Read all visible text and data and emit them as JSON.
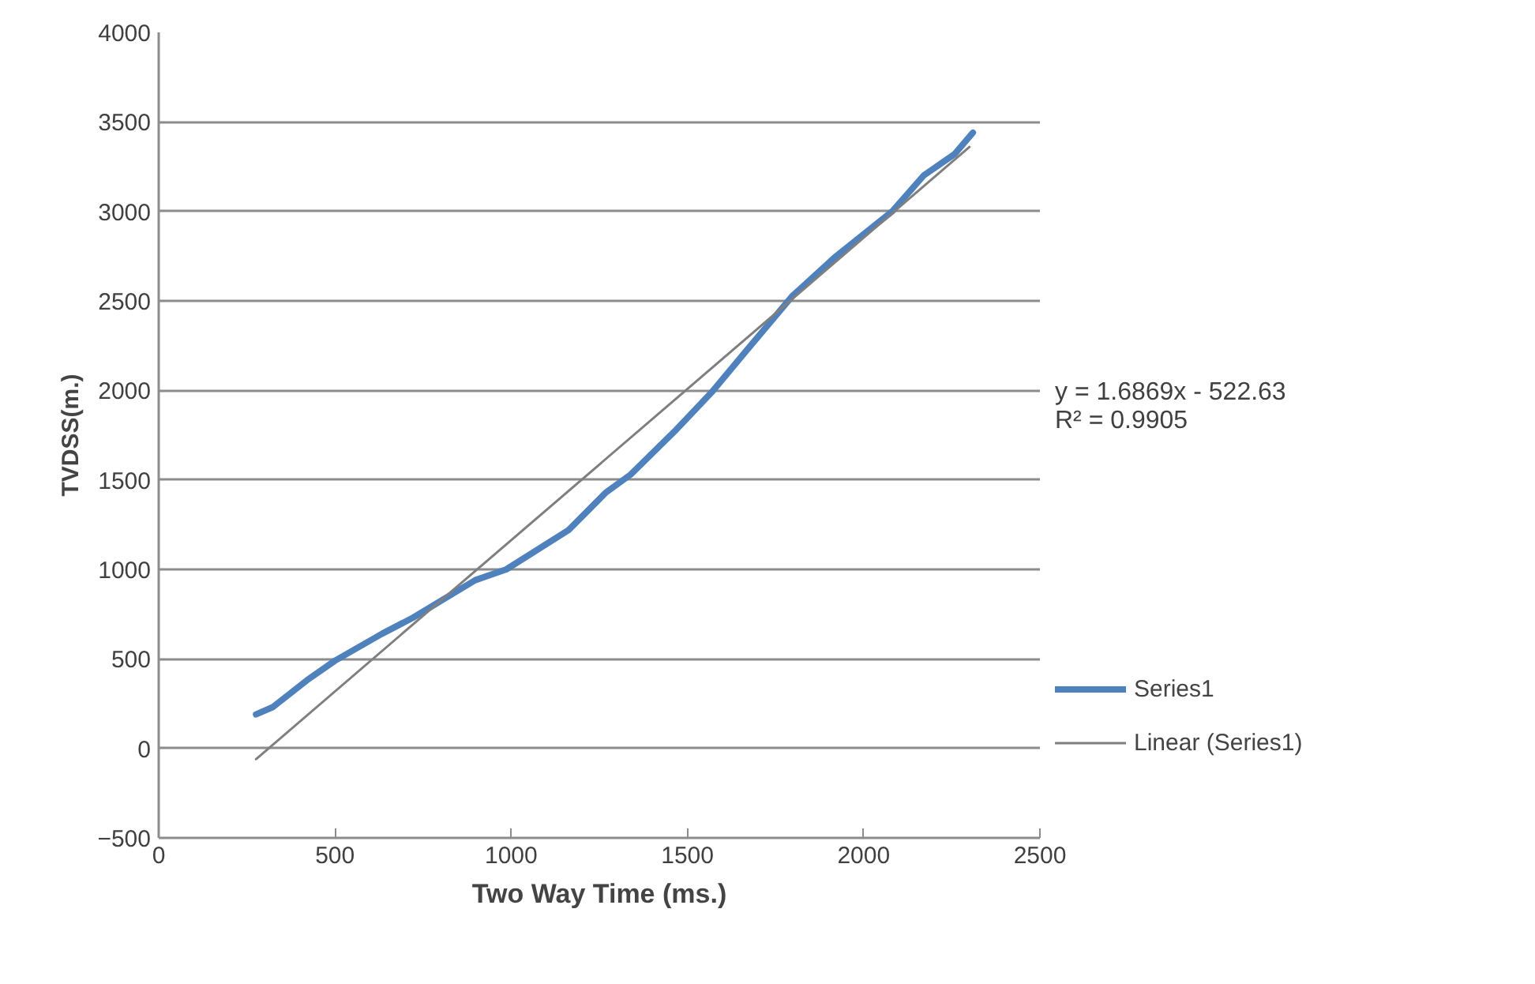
{
  "chart_data": {
    "type": "line",
    "xlabel": "Two Way Time (ms.)",
    "ylabel": "TVDSS(m.)",
    "annotations": [
      "y = 1.6869x - 522.63",
      "R² = 0.9905"
    ],
    "x": [
      276,
      323,
      420,
      500,
      633,
      721,
      898,
      986,
      1163,
      1269,
      1339,
      1463,
      1569,
      1675,
      1799,
      1922,
      2081,
      2170,
      2258,
      2310
    ],
    "series": [
      {
        "name": "Series1",
        "color": "#4f81bd",
        "values": [
          190,
          230,
          380,
          490,
          640,
          730,
          940,
          1000,
          1220,
          1430,
          1530,
          1770,
          1990,
          2240,
          2530,
          2750,
          3000,
          3200,
          3320,
          3440
        ]
      },
      {
        "name": "Linear (Series1)",
        "color": "#7f7f7f",
        "x": [
          276,
          2300
        ],
        "values": [
          -60,
          3360
        ]
      }
    ],
    "xlim": [
      0,
      2500
    ],
    "xticks": [
      0,
      500,
      1000,
      1500,
      2000,
      2500
    ],
    "ylim": [
      -500,
      4000
    ],
    "yticks": [
      -500,
      0,
      500,
      1000,
      1500,
      2000,
      2500,
      3000,
      3500,
      4000
    ],
    "grid": "y",
    "legend": "right",
    "marker": "none",
    "line_style": "solid"
  }
}
